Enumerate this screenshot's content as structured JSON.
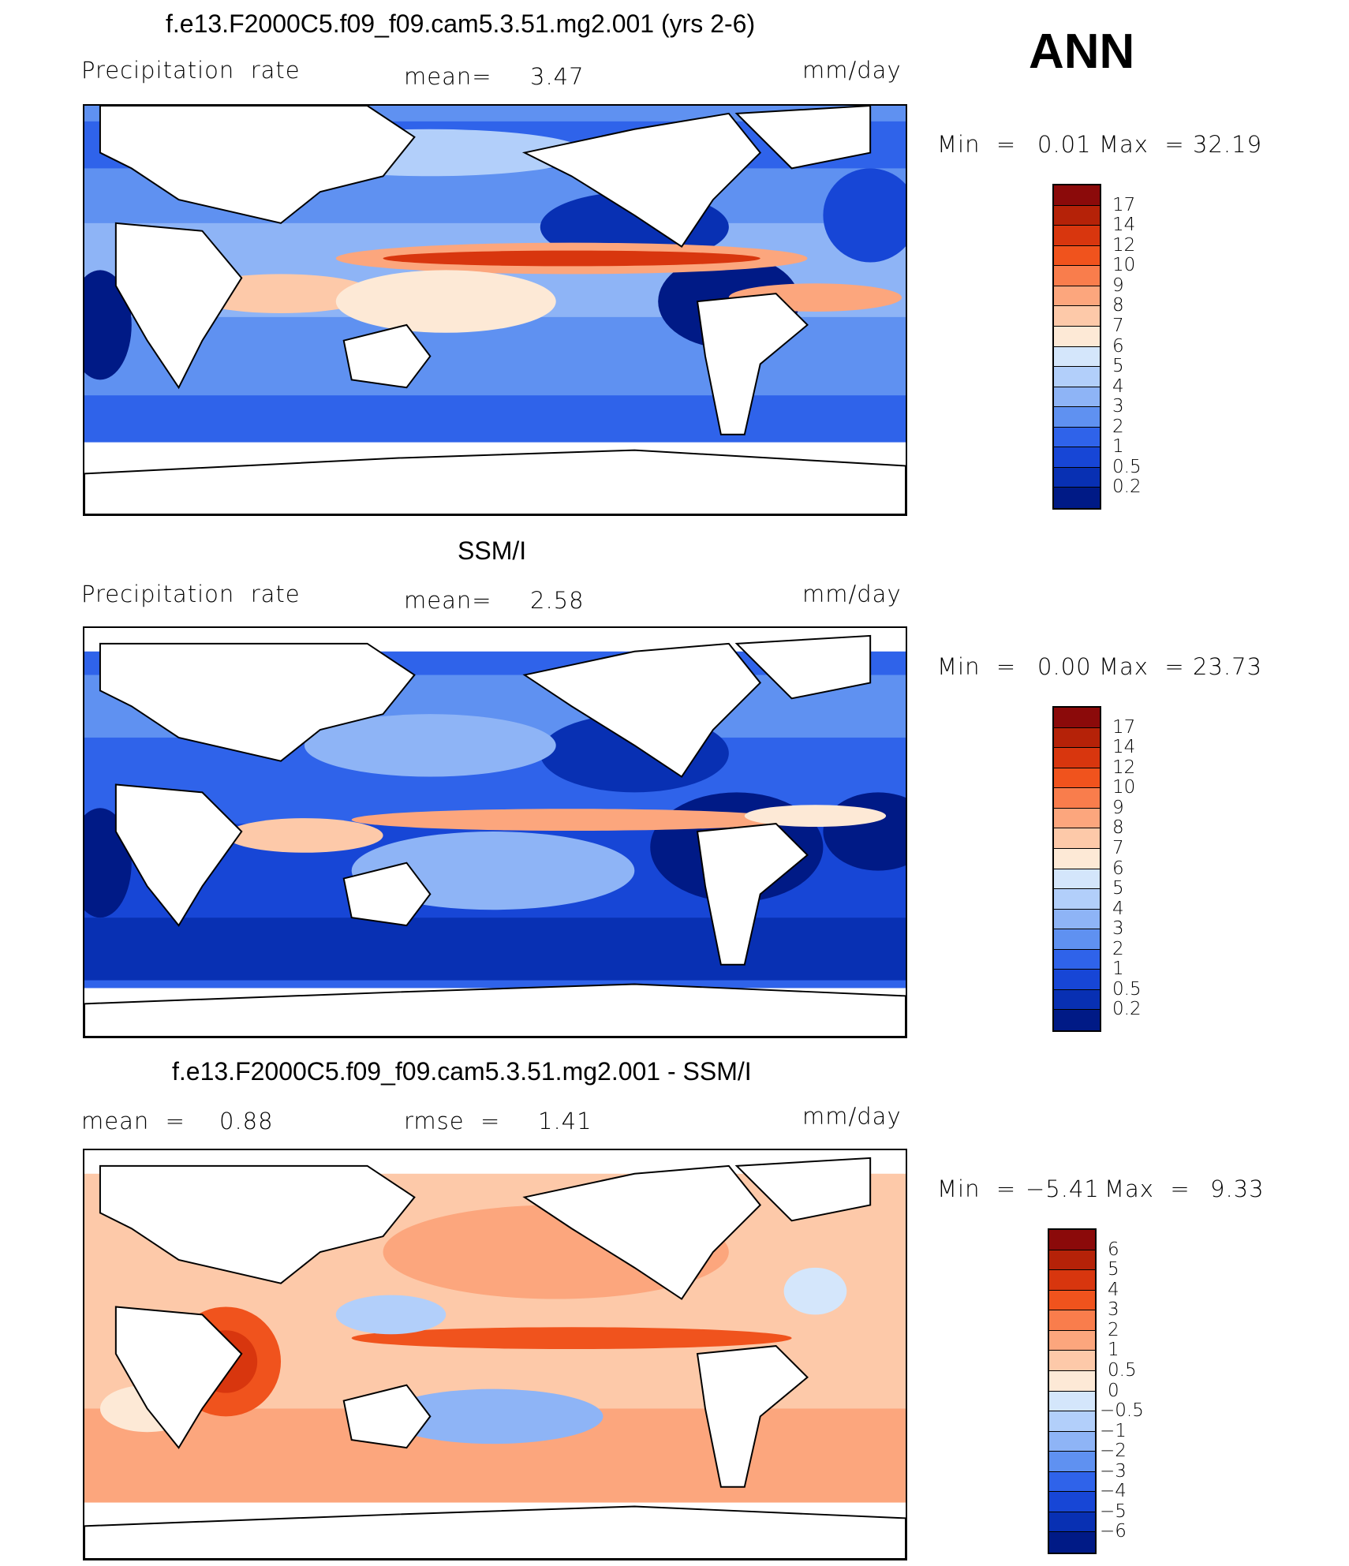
{
  "header": {
    "season": "ANN"
  },
  "panels": [
    {
      "title": "f.e13.F2000C5.f09_f09.cam5.3.51.mg2.001 (yrs 2-6)",
      "left_label": "Precipitation  rate",
      "mid_label": "mean=",
      "mid_value": "3.47",
      "units": "mm/day",
      "min_label": "Min  =",
      "min_value": "0.01",
      "max_label": "Max  =",
      "max_value": "32.19",
      "colorbar_labels": [
        "17",
        "14",
        "12",
        "10",
        "9",
        "8",
        "7",
        "6",
        "5",
        "4",
        "3",
        "2",
        "1",
        "0.5",
        "0.2"
      ],
      "colorbar_colors": [
        "#8b0a0a",
        "#b52208",
        "#d8360e",
        "#f0531d",
        "#f97d4c",
        "#fca67d",
        "#fdc9a9",
        "#fde9d6",
        "#d4e6fb",
        "#b2cffa",
        "#8eb4f6",
        "#5f91f1",
        "#2f63ea",
        "#1746d6",
        "#0830b3",
        "#001a86"
      ]
    },
    {
      "title": "SSM/I",
      "left_label": "Precipitation  rate",
      "mid_label": "mean=",
      "mid_value": "2.58",
      "units": "mm/day",
      "min_label": "Min  =",
      "min_value": "0.00",
      "max_label": "Max  =",
      "max_value": "23.73",
      "colorbar_labels": [
        "17",
        "14",
        "12",
        "10",
        "9",
        "8",
        "7",
        "6",
        "5",
        "4",
        "3",
        "2",
        "1",
        "0.5",
        "0.2"
      ],
      "colorbar_colors": [
        "#8b0a0a",
        "#b52208",
        "#d8360e",
        "#f0531d",
        "#f97d4c",
        "#fca67d",
        "#fdc9a9",
        "#fde9d6",
        "#d4e6fb",
        "#b2cffa",
        "#8eb4f6",
        "#5f91f1",
        "#2f63ea",
        "#1746d6",
        "#0830b3",
        "#001a86"
      ]
    },
    {
      "title": "f.e13.F2000C5.f09_f09.cam5.3.51.mg2.001 - SSM/I",
      "left_label": "mean  =",
      "left_value": "0.88",
      "mid_label": "rmse  =",
      "mid_value": "1.41",
      "units": "mm/day",
      "min_label": "Min  =",
      "min_value": "−5.41",
      "max_label": "Max  =",
      "max_value": "9.33",
      "colorbar_labels": [
        "6",
        "5",
        "4",
        "3",
        "2",
        "1",
        "0.5",
        "0",
        "−0.5",
        "−1",
        "−2",
        "−3",
        "−4",
        "−5",
        "−6"
      ],
      "colorbar_colors": [
        "#8b0a0a",
        "#b52208",
        "#d8360e",
        "#f0531d",
        "#f97d4c",
        "#fca67d",
        "#fdc9a9",
        "#fde9d6",
        "#d4e6fb",
        "#b2cffa",
        "#8eb4f6",
        "#5f91f1",
        "#2f63ea",
        "#1746d6",
        "#0830b3",
        "#001a86"
      ]
    }
  ]
}
